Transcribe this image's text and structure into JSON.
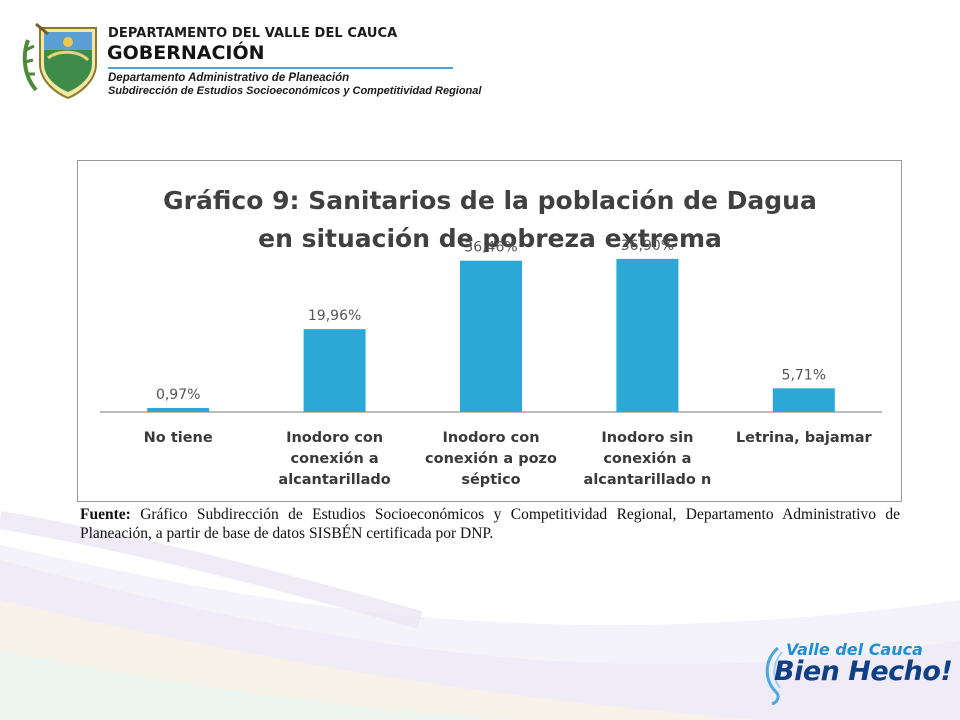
{
  "header": {
    "department": "DEPARTAMENTO DEL VALLE DEL CAUCA",
    "government": "GOBERNACIÓN",
    "office": "Departamento  Administrativo de Planeación",
    "subdivision": "Subdirección de Estudios Socioeconómicos y Competitividad Regional"
  },
  "colors": {
    "bar": "#2ba8d6",
    "header_rule": "#4aa3d8",
    "logo_light": "#1f8fd4",
    "logo_dark": "#0f3f85"
  },
  "chart_data": {
    "type": "bar",
    "title_lines": [
      "Gráfico 9: Sanitarios de la población de Dagua",
      "en situación de pobreza extrema"
    ],
    "categories": [
      [
        "No tiene"
      ],
      [
        "Inodoro con",
        "conexión a",
        "alcantarillado"
      ],
      [
        "Inodoro con",
        "conexión a pozo",
        "séptico"
      ],
      [
        "Inodoro sin",
        "conexión a",
        "alcantarillado n"
      ],
      [
        "Letrina, bajamar"
      ]
    ],
    "values": [
      0.97,
      19.96,
      36.46,
      36.9,
      5.71
    ],
    "data_labels": [
      "0,97%",
      "19,96%",
      "36,46%",
      "36,90%",
      "5,71%"
    ],
    "ylim": [
      0,
      40
    ],
    "grid": false,
    "legend": "none"
  },
  "source": {
    "label": "Fuente:",
    "text": "Gráfico Subdirección de Estudios Socioeconómicos y Competitividad Regional, Departamento Administrativo de Planeación, a partir de base de datos SISBÉN certificada por DNP."
  },
  "footer_logo": {
    "line1": "Valle del Cauca",
    "line2": "Bien Hecho!"
  }
}
